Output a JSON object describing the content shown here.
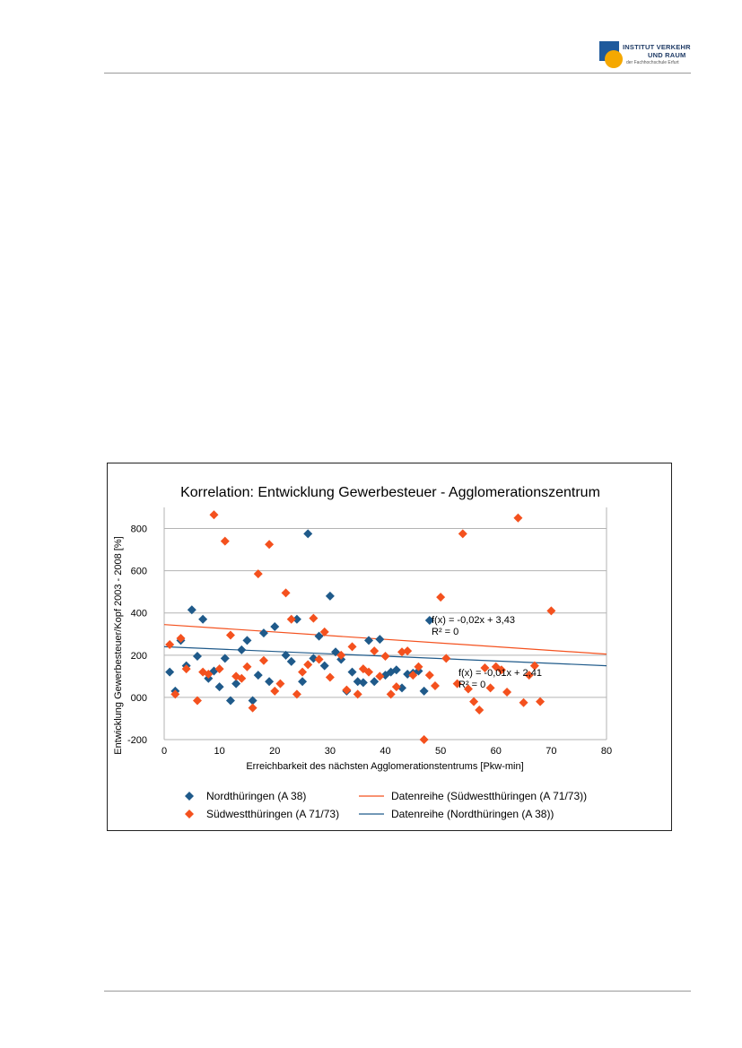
{
  "logo": {
    "line1": "INSTITUT VERKEHR",
    "line2": "UND RAUM",
    "line3": "der Fachhochschule Erfurt",
    "colors": {
      "square": "#1f5a9c",
      "circle": "#f5a800"
    }
  },
  "chart_data": {
    "type": "scatter",
    "title": "Korrelation: Entwicklung Gewerbesteuer - Agglomerationszentrum",
    "xlabel": "Erreichbarkeit des nächsten Agglomerationstentrums [Pkw-min]",
    "ylabel": "Entwicklung Gewerbesteuer/Kopf 2003 - 2008 [%]",
    "xlim": [
      0,
      80
    ],
    "ylim": [
      -200,
      900
    ],
    "xticks": [
      "0",
      "10",
      "20",
      "30",
      "40",
      "50",
      "60",
      "70",
      "80"
    ],
    "yticks": [
      {
        "value": -200,
        "label": "-200"
      },
      {
        "value": 0,
        "label": "000"
      },
      {
        "value": 200,
        "label": "200"
      },
      {
        "value": 400,
        "label": "400"
      },
      {
        "value": 600,
        "label": "600"
      },
      {
        "value": 800,
        "label": "800"
      }
    ],
    "grid": "horizontal",
    "legend_position": "bottom",
    "series": [
      {
        "name": "Nordthüringen (A 38)",
        "color": "#1f5a8a",
        "marker": "diamond",
        "points": [
          [
            1,
            120
          ],
          [
            2,
            30
          ],
          [
            3,
            270
          ],
          [
            4,
            150
          ],
          [
            5,
            415
          ],
          [
            6,
            195
          ],
          [
            7,
            370
          ],
          [
            8,
            90
          ],
          [
            9,
            125
          ],
          [
            10,
            50
          ],
          [
            11,
            185
          ],
          [
            12,
            -15
          ],
          [
            13,
            65
          ],
          [
            14,
            225
          ],
          [
            15,
            270
          ],
          [
            16,
            -15
          ],
          [
            17,
            105
          ],
          [
            18,
            305
          ],
          [
            19,
            75
          ],
          [
            20,
            335
          ],
          [
            22,
            200
          ],
          [
            23,
            170
          ],
          [
            24,
            370
          ],
          [
            25,
            75
          ],
          [
            26,
            775
          ],
          [
            27,
            185
          ],
          [
            28,
            290
          ],
          [
            29,
            150
          ],
          [
            30,
            480
          ],
          [
            31,
            215
          ],
          [
            32,
            180
          ],
          [
            33,
            30
          ],
          [
            34,
            120
          ],
          [
            35,
            75
          ],
          [
            36,
            70
          ],
          [
            37,
            270
          ],
          [
            38,
            75
          ],
          [
            39,
            275
          ],
          [
            40,
            105
          ],
          [
            41,
            120
          ],
          [
            42,
            130
          ],
          [
            43,
            45
          ],
          [
            44,
            110
          ],
          [
            45,
            115
          ],
          [
            46,
            125
          ],
          [
            47,
            30
          ],
          [
            48,
            365
          ]
        ]
      },
      {
        "name": "Südwestthüringen (A 71/73)",
        "color": "#f4511e",
        "marker": "diamond",
        "points": [
          [
            1,
            250
          ],
          [
            2,
            15
          ],
          [
            3,
            280
          ],
          [
            4,
            135
          ],
          [
            6,
            -15
          ],
          [
            7,
            120
          ],
          [
            8,
            110
          ],
          [
            9,
            865
          ],
          [
            10,
            135
          ],
          [
            11,
            740
          ],
          [
            12,
            295
          ],
          [
            13,
            100
          ],
          [
            14,
            90
          ],
          [
            15,
            145
          ],
          [
            16,
            -50
          ],
          [
            17,
            585
          ],
          [
            18,
            175
          ],
          [
            19,
            725
          ],
          [
            20,
            30
          ],
          [
            21,
            65
          ],
          [
            22,
            495
          ],
          [
            23,
            370
          ],
          [
            24,
            15
          ],
          [
            25,
            120
          ],
          [
            26,
            155
          ],
          [
            27,
            375
          ],
          [
            28,
            180
          ],
          [
            29,
            310
          ],
          [
            30,
            95
          ],
          [
            32,
            200
          ],
          [
            33,
            35
          ],
          [
            34,
            240
          ],
          [
            35,
            15
          ],
          [
            36,
            135
          ],
          [
            37,
            120
          ],
          [
            38,
            220
          ],
          [
            39,
            100
          ],
          [
            40,
            195
          ],
          [
            41,
            15
          ],
          [
            42,
            50
          ],
          [
            43,
            215
          ],
          [
            44,
            220
          ],
          [
            45,
            105
          ],
          [
            46,
            145
          ],
          [
            47,
            -200
          ],
          [
            48,
            105
          ],
          [
            49,
            55
          ],
          [
            50,
            475
          ],
          [
            51,
            185
          ],
          [
            53,
            65
          ],
          [
            54,
            775
          ],
          [
            55,
            40
          ],
          [
            56,
            -20
          ],
          [
            57,
            -60
          ],
          [
            58,
            140
          ],
          [
            59,
            45
          ],
          [
            60,
            145
          ],
          [
            61,
            130
          ],
          [
            62,
            25
          ],
          [
            64,
            850
          ],
          [
            65,
            -25
          ],
          [
            66,
            105
          ],
          [
            67,
            150
          ],
          [
            68,
            -20
          ],
          [
            70,
            410
          ]
        ]
      }
    ],
    "trendlines": [
      {
        "name": "Datenreihe (Nordthüringen (A 38))",
        "color": "#1f5a8a",
        "y_at_0": 240,
        "y_at_80": 150,
        "equation": "f(x) = -0,01x + 2,41",
        "r2": "R² = 0"
      },
      {
        "name": "Datenreihe (Südwestthüringen (A 71/73))",
        "color": "#f4511e",
        "y_at_0": 345,
        "y_at_80": 205,
        "equation": "f(x) = -0,02x + 3,43",
        "r2": "R² = 0"
      }
    ]
  }
}
